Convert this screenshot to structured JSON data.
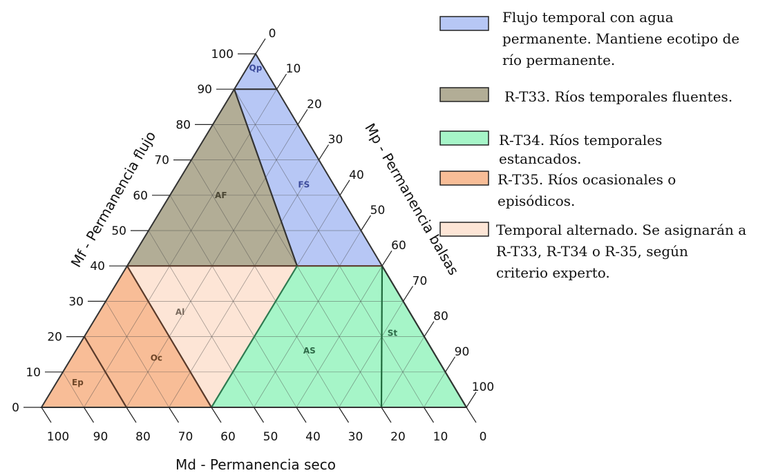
{
  "axes": {
    "bottom_title": "Md - Permanencia seco",
    "left_title": "Mf - Permanencia flujo",
    "right_title": "Mp - Permanencia balsas",
    "bottom_ticks": [
      "100",
      "90",
      "80",
      "70",
      "60",
      "50",
      "40",
      "30",
      "20",
      "10",
      "0"
    ],
    "left_ticks": [
      "0",
      "10",
      "20",
      "30",
      "40",
      "50",
      "60",
      "70",
      "80",
      "90",
      "100"
    ],
    "right_ticks": [
      "0",
      "10",
      "20",
      "30",
      "40",
      "50",
      "60",
      "70",
      "80",
      "90",
      "100"
    ]
  },
  "regions": [
    {
      "code": "Qp",
      "color": "#b7c7f5",
      "stroke": "#4a5aa8",
      "text_color": "#3b4a9a",
      "mf": [
        90,
        100
      ],
      "md": null
    },
    {
      "code": "FS",
      "color": "#b7c7f5",
      "stroke": "#4a5aa8",
      "text_color": "#3b4a9a",
      "mf": [
        40,
        90
      ],
      "mp_min": 50
    },
    {
      "code": "AF",
      "color": "#b2ad96",
      "stroke": "#555555",
      "text_color": "#4a4634",
      "mf": [
        40,
        90
      ],
      "mp_max": 50
    },
    {
      "code": "Al",
      "color": "#fde5d6",
      "stroke": "#7a5a48",
      "text_color": "#7a6a5e",
      "mf_max": 40
    },
    {
      "code": "Oc",
      "color": "#f8bd97",
      "stroke": "#7a4a30",
      "text_color": "#6e4628",
      "mf_max": 40
    },
    {
      "code": "Ep",
      "color": "#f8bd97",
      "stroke": "#7a4a30",
      "text_color": "#6e4628",
      "mf_max": 20
    },
    {
      "code": "AS",
      "color": "#a6f5c8",
      "stroke": "#2e7a50",
      "text_color": "#2e6a48",
      "mf_max": 40
    },
    {
      "code": "St",
      "color": "#a6f5c8",
      "stroke": "#2e7a50",
      "text_color": "#2e6a48",
      "mf_max": 40
    }
  ],
  "legend": [
    {
      "color": "#b7c7f5",
      "lines": [
        "Flujo temporal con agua",
        "permanente. Mantiene ecotipo de",
        "río permanente."
      ]
    },
    {
      "color": "#b2ad96",
      "lines": [
        "R-T33. Ríos temporales fluentes."
      ]
    },
    {
      "color": "#a6f5c8",
      "lines": [
        "R-T34. Ríos temporales",
        "estancados."
      ]
    },
    {
      "color": "#f8bd97",
      "lines": [
        "R-T35. Ríos ocasionales o",
        "episódicos."
      ]
    },
    {
      "color": "#fde5d6",
      "lines": [
        "Temporal alternado. Se asignarán a",
        "R-T33, R-T34 o R-35, según",
        "criterio experto."
      ]
    }
  ]
}
